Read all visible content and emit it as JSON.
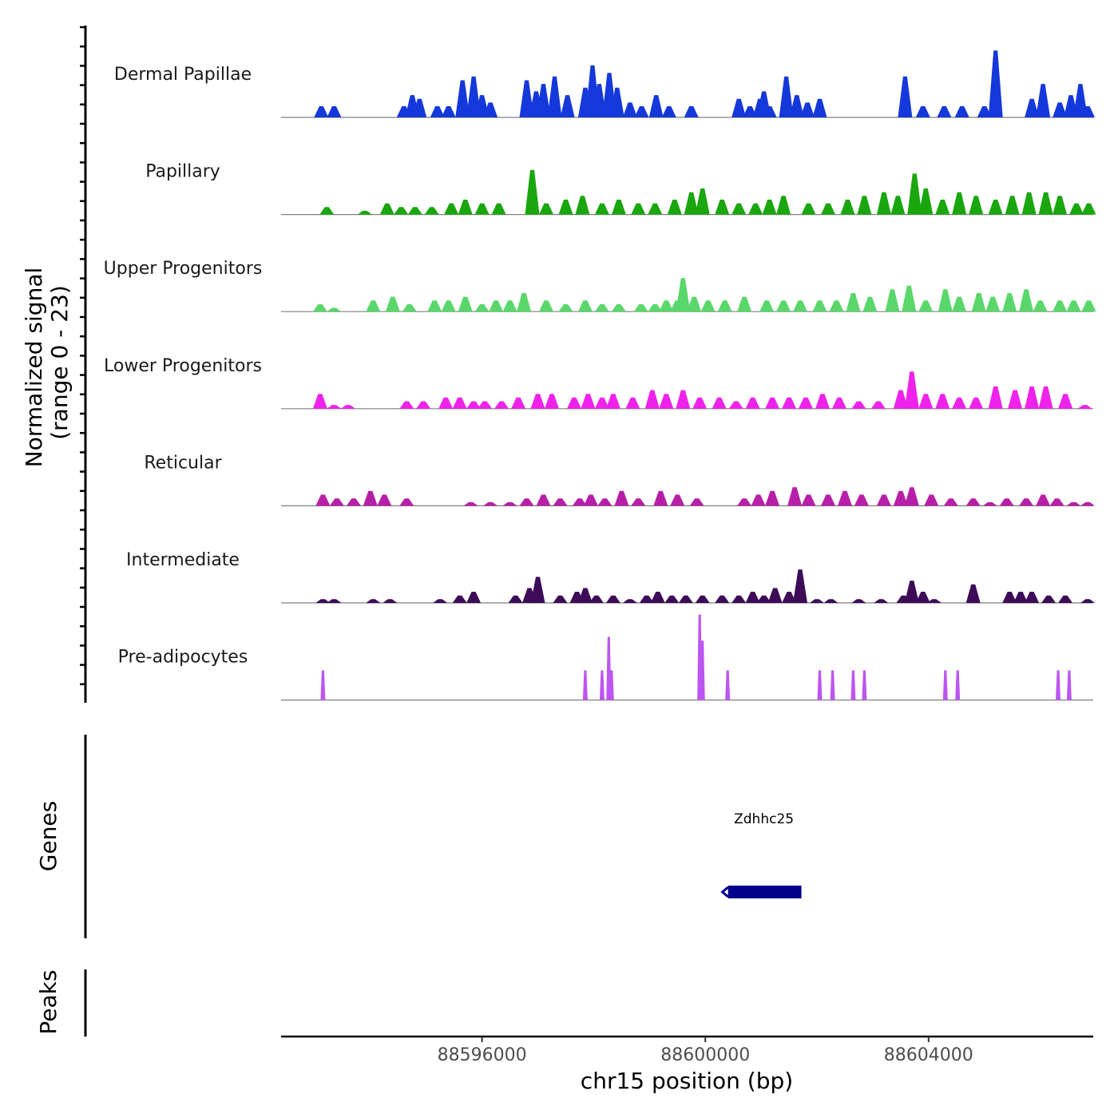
{
  "chart_data": {
    "type": "area",
    "title": "",
    "signal_axis": {
      "title": "Normalized signal",
      "subtitle": "(range 0 - 23)",
      "ylim": [
        0,
        23
      ]
    },
    "xlabel": "chr15 position (bp)",
    "xlim": [
      88592400,
      88606950
    ],
    "x_ticks": [
      88596000,
      88600000,
      88604000
    ],
    "x_tick_labels": [
      "88596000",
      "88600000",
      "88604000"
    ],
    "tracks": [
      {
        "name": "Dermal Papillae",
        "color": "#1538db",
        "peaks": [
          [
            88593120,
            3
          ],
          [
            88593350,
            3
          ],
          [
            88594600,
            3
          ],
          [
            88594750,
            6
          ],
          [
            88594880,
            5
          ],
          [
            88595200,
            3
          ],
          [
            88595400,
            3
          ],
          [
            88595650,
            10
          ],
          [
            88595850,
            11
          ],
          [
            88596000,
            6
          ],
          [
            88596150,
            4
          ],
          [
            88596800,
            10
          ],
          [
            88596970,
            7
          ],
          [
            88597100,
            9
          ],
          [
            88597300,
            11
          ],
          [
            88597530,
            6
          ],
          [
            88597850,
            8
          ],
          [
            88597980,
            14
          ],
          [
            88598100,
            9
          ],
          [
            88598280,
            12
          ],
          [
            88598420,
            8
          ],
          [
            88598650,
            4
          ],
          [
            88598860,
            3
          ],
          [
            88599120,
            6
          ],
          [
            88599350,
            3
          ],
          [
            88599750,
            3
          ],
          [
            88600600,
            5
          ],
          [
            88600800,
            3
          ],
          [
            88600980,
            5
          ],
          [
            88601050,
            7
          ],
          [
            88601150,
            3
          ],
          [
            88601450,
            11
          ],
          [
            88601640,
            6
          ],
          [
            88601830,
            4
          ],
          [
            88602050,
            5
          ],
          [
            88603580,
            11
          ],
          [
            88603900,
            3
          ],
          [
            88604280,
            3
          ],
          [
            88604600,
            3
          ],
          [
            88605000,
            3
          ],
          [
            88605200,
            18
          ],
          [
            88605850,
            5
          ],
          [
            88606050,
            9
          ],
          [
            88606350,
            4
          ],
          [
            88606550,
            6
          ],
          [
            88606720,
            9
          ],
          [
            88606850,
            3
          ]
        ]
      },
      {
        "name": "Papillary",
        "color": "#19a60e",
        "peaks": [
          [
            88593220,
            2
          ],
          [
            88593900,
            1
          ],
          [
            88594300,
            3
          ],
          [
            88594550,
            2
          ],
          [
            88594800,
            2
          ],
          [
            88595100,
            2
          ],
          [
            88595450,
            3
          ],
          [
            88595700,
            4
          ],
          [
            88596000,
            3
          ],
          [
            88596300,
            3
          ],
          [
            88596900,
            12
          ],
          [
            88597150,
            3
          ],
          [
            88597500,
            4
          ],
          [
            88597800,
            5
          ],
          [
            88598150,
            3
          ],
          [
            88598450,
            4
          ],
          [
            88598800,
            3
          ],
          [
            88599100,
            3
          ],
          [
            88599450,
            4
          ],
          [
            88599750,
            6
          ],
          [
            88599950,
            7
          ],
          [
            88600300,
            4
          ],
          [
            88600600,
            3
          ],
          [
            88600900,
            3
          ],
          [
            88601150,
            4
          ],
          [
            88601400,
            5
          ],
          [
            88601850,
            3
          ],
          [
            88602200,
            3
          ],
          [
            88602550,
            4
          ],
          [
            88602850,
            5
          ],
          [
            88603200,
            6
          ],
          [
            88603450,
            5
          ],
          [
            88603750,
            11
          ],
          [
            88603950,
            7
          ],
          [
            88604250,
            4
          ],
          [
            88604550,
            6
          ],
          [
            88604850,
            5
          ],
          [
            88605200,
            4
          ],
          [
            88605500,
            5
          ],
          [
            88605800,
            6
          ],
          [
            88606100,
            6
          ],
          [
            88606350,
            5
          ],
          [
            88606650,
            3
          ],
          [
            88606870,
            3
          ]
        ]
      },
      {
        "name": "Upper Progenitors",
        "color": "#5ad76a",
        "peaks": [
          [
            88593100,
            2
          ],
          [
            88593350,
            1
          ],
          [
            88594050,
            3
          ],
          [
            88594400,
            4
          ],
          [
            88594700,
            2
          ],
          [
            88595150,
            3
          ],
          [
            88595400,
            3
          ],
          [
            88595700,
            4
          ],
          [
            88596000,
            2
          ],
          [
            88596250,
            3
          ],
          [
            88596500,
            3
          ],
          [
            88596750,
            5
          ],
          [
            88597150,
            3
          ],
          [
            88597500,
            2
          ],
          [
            88597850,
            3
          ],
          [
            88598150,
            2
          ],
          [
            88598450,
            2
          ],
          [
            88598850,
            2
          ],
          [
            88599100,
            2
          ],
          [
            88599300,
            3
          ],
          [
            88599500,
            3
          ],
          [
            88599600,
            9
          ],
          [
            88599800,
            4
          ],
          [
            88600050,
            3
          ],
          [
            88600350,
            3
          ],
          [
            88600700,
            4
          ],
          [
            88601100,
            3
          ],
          [
            88601400,
            3
          ],
          [
            88601700,
            3
          ],
          [
            88602050,
            3
          ],
          [
            88602350,
            3
          ],
          [
            88602650,
            5
          ],
          [
            88602950,
            4
          ],
          [
            88603350,
            6
          ],
          [
            88603650,
            7
          ],
          [
            88603950,
            3
          ],
          [
            88604300,
            6
          ],
          [
            88604550,
            4
          ],
          [
            88604900,
            5
          ],
          [
            88605150,
            4
          ],
          [
            88605450,
            5
          ],
          [
            88605750,
            6
          ],
          [
            88606000,
            3
          ],
          [
            88606350,
            3
          ],
          [
            88606600,
            3
          ],
          [
            88606870,
            3
          ]
        ]
      },
      {
        "name": "Lower Progenitors",
        "color": "#ee22ea",
        "peaks": [
          [
            88593100,
            4
          ],
          [
            88593350,
            1
          ],
          [
            88593600,
            1
          ],
          [
            88594650,
            2
          ],
          [
            88594950,
            2
          ],
          [
            88595350,
            3
          ],
          [
            88595600,
            3
          ],
          [
            88595850,
            2
          ],
          [
            88596050,
            2
          ],
          [
            88596350,
            2
          ],
          [
            88596650,
            3
          ],
          [
            88597000,
            4
          ],
          [
            88597250,
            4
          ],
          [
            88597650,
            3
          ],
          [
            88597900,
            4
          ],
          [
            88598150,
            3
          ],
          [
            88598350,
            4
          ],
          [
            88598700,
            3
          ],
          [
            88599050,
            5
          ],
          [
            88599300,
            4
          ],
          [
            88599600,
            5
          ],
          [
            88599900,
            3
          ],
          [
            88600250,
            3
          ],
          [
            88600550,
            2
          ],
          [
            88600850,
            3
          ],
          [
            88601200,
            3
          ],
          [
            88601500,
            3
          ],
          [
            88601800,
            3
          ],
          [
            88602100,
            4
          ],
          [
            88602400,
            3
          ],
          [
            88602750,
            2
          ],
          [
            88603100,
            2
          ],
          [
            88603500,
            5
          ],
          [
            88603700,
            10
          ],
          [
            88603950,
            4
          ],
          [
            88604250,
            4
          ],
          [
            88604550,
            3
          ],
          [
            88604850,
            3
          ],
          [
            88605200,
            6
          ],
          [
            88605550,
            5
          ],
          [
            88605850,
            6
          ],
          [
            88606100,
            6
          ],
          [
            88606450,
            4
          ],
          [
            88606800,
            1
          ]
        ]
      },
      {
        "name": "Reticular",
        "color": "#b81fa8",
        "peaks": [
          [
            88593150,
            3
          ],
          [
            88593400,
            2
          ],
          [
            88593700,
            2
          ],
          [
            88594000,
            4
          ],
          [
            88594250,
            3
          ],
          [
            88594650,
            2
          ],
          [
            88595800,
            1
          ],
          [
            88596150,
            1
          ],
          [
            88596500,
            1
          ],
          [
            88596800,
            2
          ],
          [
            88597100,
            3
          ],
          [
            88597400,
            2
          ],
          [
            88597750,
            2
          ],
          [
            88597950,
            3
          ],
          [
            88598200,
            2
          ],
          [
            88598500,
            4
          ],
          [
            88598800,
            2
          ],
          [
            88599200,
            4
          ],
          [
            88599500,
            3
          ],
          [
            88599850,
            2
          ],
          [
            88600700,
            2
          ],
          [
            88600950,
            3
          ],
          [
            88601200,
            4
          ],
          [
            88601600,
            5
          ],
          [
            88601850,
            3
          ],
          [
            88602200,
            3
          ],
          [
            88602500,
            4
          ],
          [
            88602800,
            3
          ],
          [
            88603200,
            3
          ],
          [
            88603500,
            4
          ],
          [
            88603700,
            5
          ],
          [
            88604050,
            3
          ],
          [
            88604400,
            2
          ],
          [
            88604800,
            2
          ],
          [
            88605100,
            1
          ],
          [
            88605400,
            2
          ],
          [
            88605750,
            2
          ],
          [
            88606050,
            3
          ],
          [
            88606300,
            2
          ],
          [
            88606600,
            1
          ],
          [
            88606850,
            1
          ]
        ]
      },
      {
        "name": "Intermediate",
        "color": "#3d0b57",
        "peaks": [
          [
            88593150,
            1
          ],
          [
            88593350,
            1
          ],
          [
            88594050,
            1
          ],
          [
            88594350,
            1
          ],
          [
            88595250,
            1
          ],
          [
            88595600,
            2
          ],
          [
            88595850,
            3
          ],
          [
            88596600,
            2
          ],
          [
            88596850,
            4
          ],
          [
            88597000,
            7
          ],
          [
            88597400,
            2
          ],
          [
            88597700,
            3
          ],
          [
            88597850,
            4
          ],
          [
            88598050,
            2
          ],
          [
            88598350,
            2
          ],
          [
            88598650,
            1
          ],
          [
            88598950,
            2
          ],
          [
            88599150,
            3
          ],
          [
            88599400,
            2
          ],
          [
            88599650,
            2
          ],
          [
            88599950,
            2
          ],
          [
            88600300,
            2
          ],
          [
            88600600,
            2
          ],
          [
            88600850,
            3
          ],
          [
            88601050,
            2
          ],
          [
            88601250,
            4
          ],
          [
            88601500,
            3
          ],
          [
            88601700,
            9
          ],
          [
            88602000,
            1
          ],
          [
            88602250,
            1
          ],
          [
            88602750,
            1
          ],
          [
            88603150,
            1
          ],
          [
            88603550,
            2
          ],
          [
            88603700,
            6
          ],
          [
            88603900,
            3
          ],
          [
            88604100,
            1
          ],
          [
            88604800,
            5
          ],
          [
            88605450,
            3
          ],
          [
            88605650,
            3
          ],
          [
            88605850,
            3
          ],
          [
            88606150,
            2
          ],
          [
            88606450,
            2
          ],
          [
            88606850,
            1
          ]
        ]
      },
      {
        "name": "Pre-adipocytes",
        "color": "#bd55f2",
        "peaks": [
          [
            88593150,
            8
          ],
          [
            88597850,
            8
          ],
          [
            88598150,
            8
          ],
          [
            88598270,
            17
          ],
          [
            88598320,
            8
          ],
          [
            88599900,
            23
          ],
          [
            88599950,
            16
          ],
          [
            88600400,
            8
          ],
          [
            88602050,
            8
          ],
          [
            88602280,
            8
          ],
          [
            88602650,
            8
          ],
          [
            88602850,
            8
          ],
          [
            88604300,
            8
          ],
          [
            88604520,
            8
          ],
          [
            88606320,
            8
          ],
          [
            88606520,
            8
          ]
        ]
      }
    ],
    "genes": [
      {
        "name": "Zdhhc25",
        "start": 88600350,
        "end": 88601750,
        "strand": "-",
        "color": "#00008b"
      }
    ],
    "panel_labels": {
      "genes": "Genes",
      "peaks": "Peaks"
    }
  }
}
